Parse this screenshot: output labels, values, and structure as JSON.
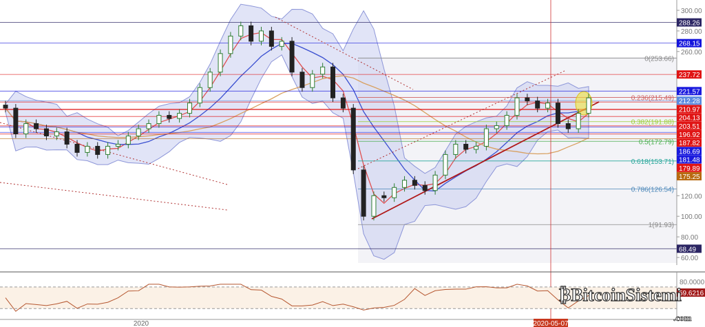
{
  "chart_data": {
    "type": "candlestick",
    "closes": [
      205,
      180,
      190,
      185,
      178,
      182,
      170,
      162,
      168,
      160,
      168,
      170,
      178,
      185,
      190,
      198,
      195,
      200,
      210,
      225,
      240,
      258,
      275,
      285,
      270,
      280,
      265,
      270,
      240,
      225,
      238,
      245,
      215,
      205,
      145,
      100,
      120,
      118,
      128,
      135,
      130,
      125,
      140,
      160,
      170,
      165,
      168,
      185,
      188,
      198,
      215,
      212,
      205,
      210,
      190,
      185,
      200,
      215
    ],
    "y_axis_ticks": [
      300,
      280,
      260,
      120,
      100,
      80,
      60
    ],
    "y_tick_labels": [
      "300.00",
      "280.00",
      "260.00",
      "120.00",
      "100.00",
      "80.00",
      "60.00"
    ],
    "ylim": [
      60,
      300
    ],
    "x_tick_labels": [
      {
        "index": 14,
        "label": "2020"
      },
      {
        "index": 54,
        "label": "2020-05-07"
      }
    ],
    "price_levels": [
      {
        "label": "288.26",
        "value": 288.26,
        "color": "#2b2563"
      },
      {
        "label": "268.15",
        "value": 268.15,
        "color": "#1414dc"
      },
      {
        "label": "237.72",
        "value": 237.72,
        "color": "#e01414"
      },
      {
        "label": "221.57",
        "value": 221.57,
        "color": "#1a1ade"
      },
      {
        "label": "212.28",
        "value": 212.28,
        "color": "#5b8be0"
      },
      {
        "label": "210.97",
        "value": 210.97,
        "color": "#e01414"
      },
      {
        "label": "204.13",
        "value": 204.13,
        "color": "#e01414"
      },
      {
        "label": "203.51",
        "value": 203.51,
        "color": "#e01414"
      },
      {
        "label": "196.92",
        "value": 196.92,
        "color": "#e01414"
      },
      {
        "label": "187.82",
        "value": 187.82,
        "color": "#e01414"
      },
      {
        "label": "186.69",
        "value": 186.69,
        "color": "#1a1ade"
      },
      {
        "label": "181.48",
        "value": 181.48,
        "color": "#1a1ade"
      },
      {
        "label": "179.89",
        "value": 179.89,
        "color": "#e01414"
      },
      {
        "label": "175.25",
        "value": 175.25,
        "color": "#b8690f"
      },
      {
        "label": "68.49",
        "value": 68.49,
        "color": "#2b2563"
      }
    ],
    "fibonacci": [
      {
        "label": "0(253.66)",
        "value": 253.66,
        "color": "#888888"
      },
      {
        "label": "0.236(215.49)",
        "value": 215.49,
        "color": "#d06060"
      },
      {
        "label": "0.382(191.88)",
        "value": 191.88,
        "color": "#9acd32"
      },
      {
        "label": "0.5(172.79)",
        "value": 172.79,
        "color": "#4caf50"
      },
      {
        "label": "0.618(153.71)",
        "value": 153.71,
        "color": "#26a69a"
      },
      {
        "label": "0.786(126.54)",
        "value": 126.54,
        "color": "#4a86b8"
      },
      {
        "label": "1(91.93)",
        "value": 91.93,
        "color": "#888888"
      }
    ],
    "rsi": {
      "current_label": "59.6216",
      "current": 59.6216,
      "ticks": [
        "80.0000"
      ],
      "upper": 70,
      "lower": 30,
      "color": "#b5562f"
    },
    "colors": {
      "up": "#2e7d32",
      "down": "#222222",
      "ma_fast": "#e05050",
      "ma_mid": "#3a4fd0",
      "ma_slow": "#d8a060",
      "band_fill": "#c8cdf0",
      "vertical_marker": "#d03030"
    }
  },
  "watermark": {
    "text": "BitcoinSistemi",
    "suffix": ".com"
  }
}
